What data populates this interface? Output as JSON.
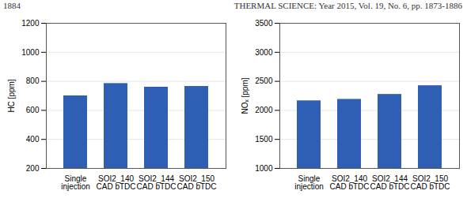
{
  "page_header": {
    "page": "1884",
    "running_title": "THERMAL SCIENCE: Year 2015, Vol. 19, No. 6, pp. 1873-1886"
  },
  "chart_data": [
    {
      "type": "bar",
      "y_label": "HC [ppm]",
      "categories": [
        "Single injection",
        "SOI2_140 CAD bTDC",
        "SOI2_144 CAD bTDC",
        "SOI2_150 CAD bTDC"
      ],
      "values": [
        700,
        785,
        760,
        765
      ],
      "color": "#2f5fb5",
      "ylim": [
        200,
        1200
      ],
      "yticks": [
        200,
        400,
        600,
        800,
        1000,
        1200
      ],
      "grid": true
    },
    {
      "type": "bar",
      "y_label": "NOₓ [ppm]",
      "categories": [
        "Single injection",
        "SOI2_140 CAD bTDC",
        "SOI2_144 CAD bTDC",
        "SOI2_150 CAD bTDC"
      ],
      "values": [
        2165,
        2190,
        2275,
        2425
      ],
      "color": "#2f5fb5",
      "ylim": [
        1000,
        3500
      ],
      "yticks": [
        1000,
        1500,
        2000,
        2500,
        3000,
        3500
      ],
      "grid": true
    }
  ]
}
